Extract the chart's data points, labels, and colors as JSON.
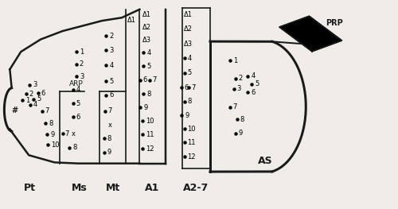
{
  "bg_color": "#f0ede8",
  "line_color": "#1a1a1a",
  "fig_w": 5.0,
  "fig_h": 2.63,
  "dpi": 100,
  "pt_label": "Pt",
  "ms_label": "Ms",
  "mt_label": "Mt",
  "a1_label": "A1",
  "a27_label": "A2-7",
  "as_label": "AS",
  "arp_label": "ARP",
  "prp_label": "PRP"
}
